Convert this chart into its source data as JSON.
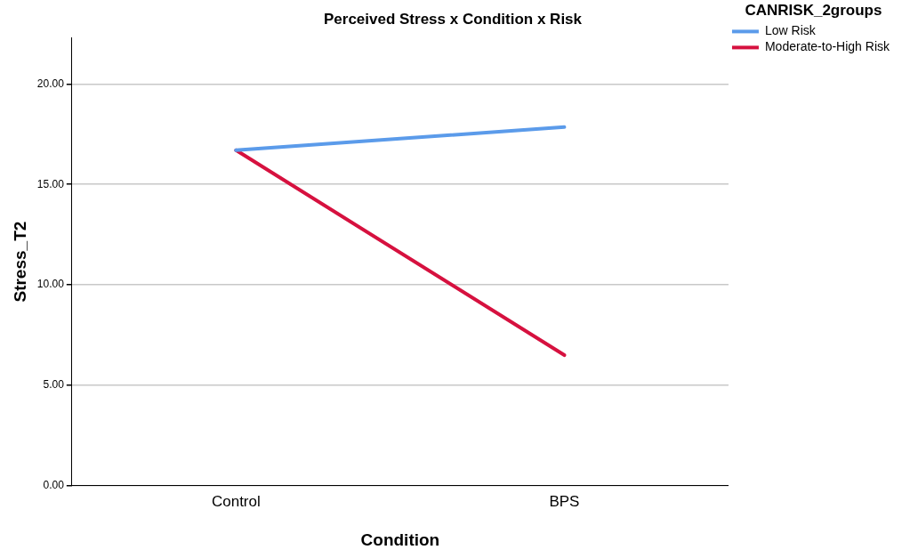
{
  "chart_data": {
    "type": "line",
    "title": "Perceived Stress x Condition x Risk",
    "xlabel": "Condition",
    "ylabel": "Stress_T2",
    "legend_title": "CANRISK_2groups",
    "categories": [
      "Control",
      "BPS"
    ],
    "series": [
      {
        "name": "Low Risk",
        "color": "#5b9bea",
        "values": [
          16.7,
          17.85
        ]
      },
      {
        "name": "Moderate-to-High Risk",
        "color": "#d6113f",
        "values": [
          16.7,
          6.5
        ]
      }
    ],
    "ylim": [
      0,
      22.3
    ],
    "yticks": [
      {
        "value": 0,
        "label": "0.00"
      },
      {
        "value": 5,
        "label": "5.00"
      },
      {
        "value": 10,
        "label": "10.00"
      },
      {
        "value": 15,
        "label": "15.00"
      },
      {
        "value": 20,
        "label": "20.00"
      }
    ],
    "grid": "y",
    "legend": "top right",
    "marker": "none",
    "line_style": "solid"
  }
}
